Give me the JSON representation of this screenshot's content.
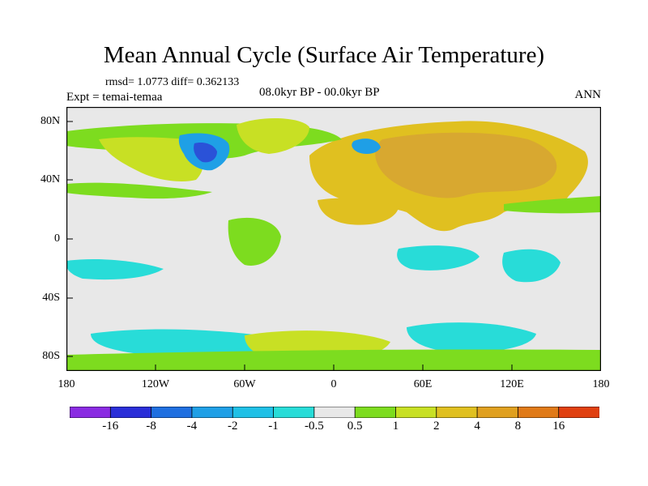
{
  "title": "Mean Annual Cycle (Surface Air Temperature)",
  "stats_text": "rmsd= 1.0773 diff= 0.362133",
  "expt_text": "Expt = temai-temaa",
  "period_text": "08.0kyr BP - 00.0kyr BP",
  "season": "ANN",
  "y_ticks": [
    "80N",
    "40N",
    "0",
    "40S",
    "80S"
  ],
  "x_ticks": [
    "180",
    "120W",
    "60W",
    "0",
    "60E",
    "120E",
    "180"
  ],
  "colorbar": {
    "labels": [
      "-16",
      "-8",
      "-4",
      "-2",
      "-1",
      "-0.5",
      "0.5",
      "1",
      "2",
      "4",
      "8",
      "16"
    ],
    "colors": [
      "#8a2be2",
      "#2a2ed8",
      "#1f6fe0",
      "#1f9fe6",
      "#1fc0e6",
      "#28dcd8",
      "#e8e8e8",
      "#7ddc1f",
      "#c8e024",
      "#e0c020",
      "#e0a020",
      "#e07a18",
      "#e04010"
    ]
  },
  "map": {
    "kind": "global surface air temperature anomaly (lat/lon)",
    "lat_range": [
      -90,
      90
    ],
    "lon_range": [
      -180,
      180
    ]
  }
}
